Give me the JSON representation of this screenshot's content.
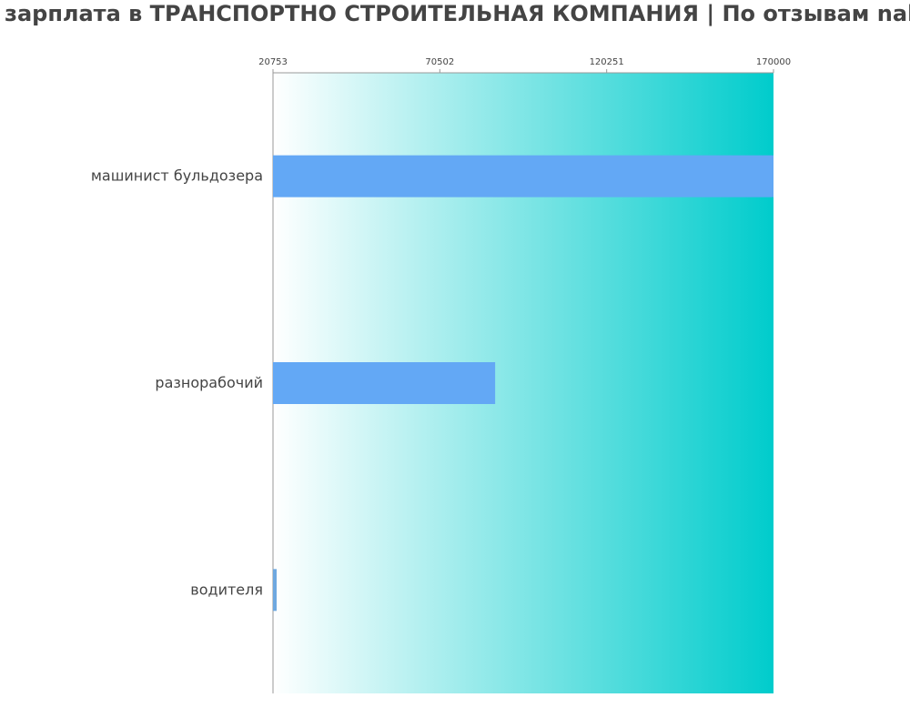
{
  "title": "зарплата в ТРАНСПОРТНО СТРОИТЕЛЬНАЯ КОМПАНИЯ | По отзывам nal",
  "colors": {
    "bar": "#63a8f5",
    "bar_small": "#6ea8e0",
    "gradient_start": "#ffffff",
    "gradient_end": "#00cccc",
    "text": "#444444",
    "axis": "#999999"
  },
  "chart_data": {
    "type": "bar",
    "orientation": "horizontal",
    "categories": [
      "машинист бульдозера",
      "разнорабочий",
      "водителя"
    ],
    "values": [
      170000,
      87000,
      21100
    ],
    "xlim": [
      20753,
      170000
    ],
    "xticks": [
      "20753",
      "70502",
      "120251",
      "170000"
    ],
    "tick_position": "top",
    "grid": false
  }
}
